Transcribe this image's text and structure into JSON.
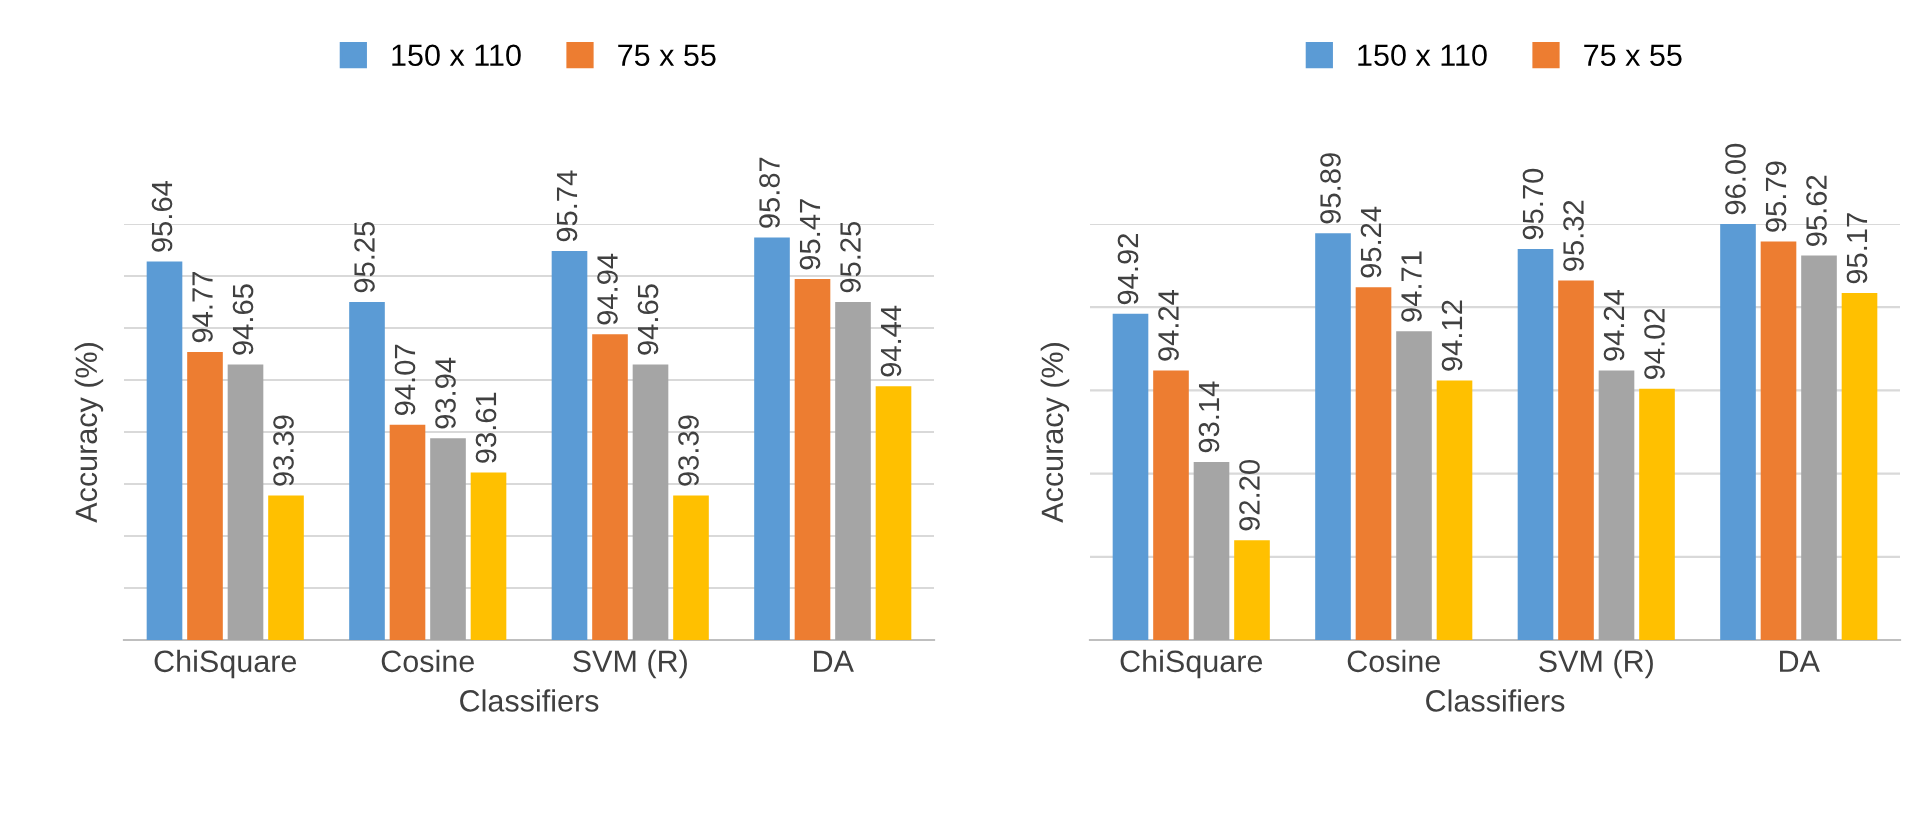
{
  "chart_data": [
    {
      "type": "bar",
      "xlabel": "Classifiers",
      "ylabel": "Accuracy (%)",
      "categories": [
        "ChiSquare",
        "Cosine",
        "SVM (R)",
        "DA"
      ],
      "ylim": [
        92,
        96
      ],
      "yticks": [
        {
          "value": 92,
          "label": null
        },
        {
          "value": 92.5,
          "label": null
        },
        {
          "value": 93,
          "label": null
        },
        {
          "value": 93.5,
          "label": null
        },
        {
          "value": 94,
          "label": null
        },
        {
          "value": 94.5,
          "label": null
        },
        {
          "value": 95,
          "label": null
        },
        {
          "value": 95.5,
          "label": null
        },
        {
          "value": 96,
          "label": null
        }
      ],
      "grid": "y",
      "legend": "top",
      "series": [
        {
          "name": "150 x 110",
          "color": "#5b9bd5",
          "values": [
            95.64,
            95.25,
            95.74,
            95.87
          ],
          "value_labels": [
            "95.64",
            "95.25",
            "95.74",
            "95.87"
          ]
        },
        {
          "name": "75 x 55",
          "color": "#ed7d31",
          "values": [
            94.77,
            94.07,
            94.94,
            95.47
          ],
          "value_labels": [
            "94.77",
            "94.07",
            "94.94",
            "95.47"
          ]
        },
        {
          "color": "#a5a5a5",
          "values": [
            94.65,
            93.94,
            94.65,
            95.25
          ],
          "value_labels": [
            "94.65",
            "93.94",
            "94.65",
            "95.25"
          ]
        },
        {
          "color": "#ffc000",
          "values": [
            93.39,
            93.61,
            93.39,
            94.44
          ],
          "value_labels": [
            "93.39",
            "93.61",
            "93.39",
            "94.44"
          ]
        }
      ]
    },
    {
      "type": "bar",
      "xlabel": "Classifiers",
      "ylabel": "Accuracy (%)",
      "categories": [
        "ChiSquare",
        "Cosine",
        "SVM (R)",
        "DA"
      ],
      "ylim": [
        91,
        96
      ],
      "yticks": [
        {
          "value": 91,
          "label": null
        },
        {
          "value": 92,
          "label": null
        },
        {
          "value": 93,
          "label": null
        },
        {
          "value": 94,
          "label": null
        },
        {
          "value": 95,
          "label": null
        },
        {
          "value": 96,
          "label": null
        }
      ],
      "grid": "y",
      "legend": "top",
      "series": [
        {
          "name": "150 x 110",
          "color": "#5b9bd5",
          "values": [
            94.92,
            95.89,
            95.7,
            96.0
          ],
          "value_labels": [
            "94.92",
            "95.89",
            "95.70",
            "96.00"
          ]
        },
        {
          "name": "75 x 55",
          "color": "#ed7d31",
          "values": [
            94.24,
            95.24,
            95.32,
            95.79
          ],
          "value_labels": [
            "94.24",
            "95.24",
            "95.32",
            "95.79"
          ]
        },
        {
          "color": "#a5a5a5",
          "values": [
            93.14,
            94.71,
            94.24,
            95.62
          ],
          "value_labels": [
            "93.14",
            "94.71",
            "94.24",
            "95.62"
          ]
        },
        {
          "color": "#ffc000",
          "values": [
            92.2,
            94.12,
            94.02,
            95.17
          ],
          "value_labels": [
            "92.20",
            "94.12",
            "94.02",
            "95.17"
          ]
        }
      ]
    }
  ]
}
